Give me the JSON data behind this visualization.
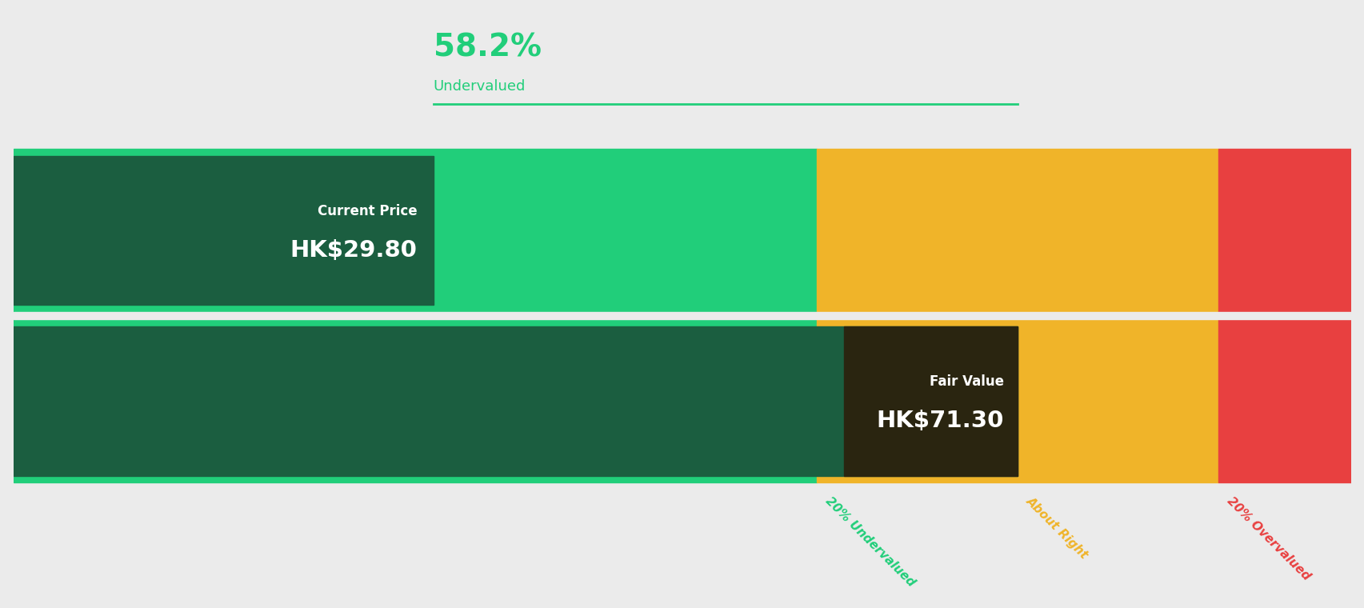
{
  "background_color": "#ebebeb",
  "percent_label": "58.2%",
  "percent_sublabel": "Undervalued",
  "percent_color": "#21ce7a",
  "current_price_label": "Current Price",
  "current_price_value": "HK$29.80",
  "fair_value_label": "Fair Value",
  "fair_value_value": "HK$71.30",
  "current_price": 29.8,
  "fair_value": 71.3,
  "undervalue_pct": 0.2,
  "overvalue_pct": 0.2,
  "color_dark_green": "#1b5e40",
  "color_bright_green": "#21ce7a",
  "color_yellow": "#f0b429",
  "color_red": "#e84040",
  "color_dark_fair": "#2a2510",
  "label_20under_color": "#21ce7a",
  "label_about_color": "#f0b429",
  "label_20over_color": "#e84040",
  "line_color": "#21ce7a",
  "fig_width": 17.06,
  "fig_height": 7.6,
  "x_max_price": 95.0
}
